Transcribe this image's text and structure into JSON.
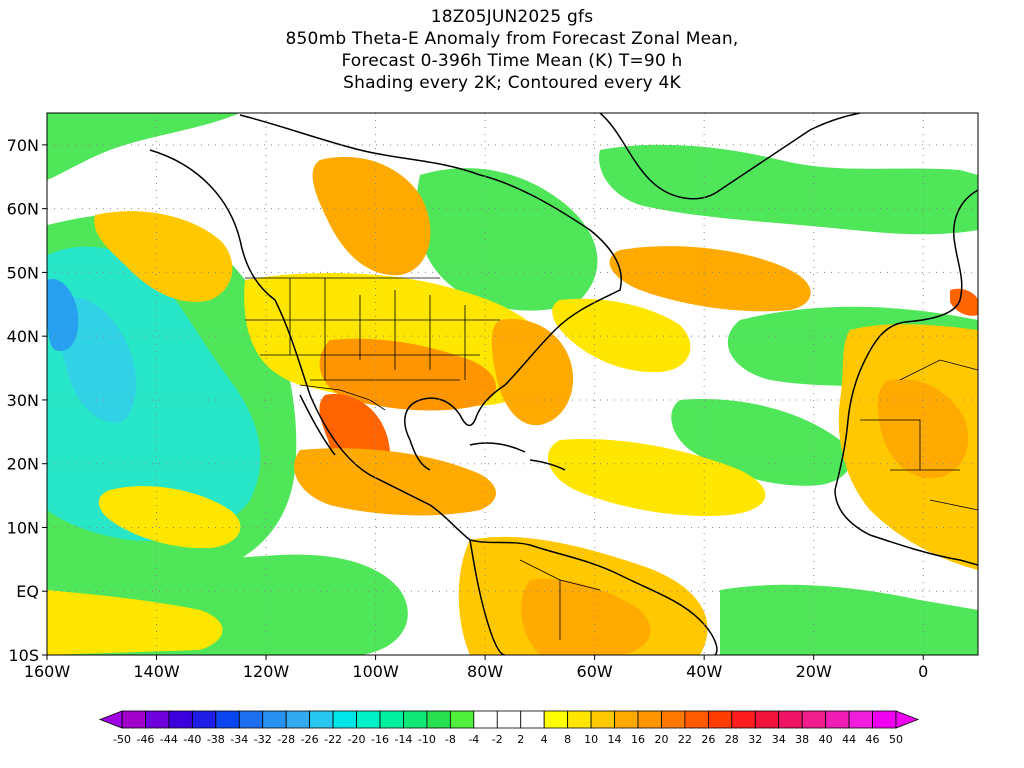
{
  "title": {
    "line1": "18Z05JUN2025 gfs",
    "line2": "850mb Theta-E Anomaly from Forecast Zonal Mean,",
    "line3": "Forecast 0-396h Time Mean (K) T=90 h",
    "line4": "Shading every 2K; Contoured every 4K"
  },
  "axes": {
    "lon_labels": [
      "160W",
      "140W",
      "120W",
      "100W",
      "80W",
      "60W",
      "40W",
      "20W",
      "0"
    ],
    "lon_values": [
      -160,
      -140,
      -120,
      -100,
      -80,
      -60,
      -40,
      -20,
      0
    ],
    "lat_labels": [
      "70N",
      "60N",
      "50N",
      "40N",
      "30N",
      "20N",
      "10N",
      "EQ",
      "10S"
    ],
    "lat_values": [
      70,
      60,
      50,
      40,
      30,
      20,
      10,
      0,
      -10
    ],
    "lon_range": [
      -160,
      10
    ],
    "lat_range": [
      -10,
      75
    ]
  },
  "colorbar": {
    "labels": [
      "-50",
      "-46",
      "-44",
      "-40",
      "-38",
      "-34",
      "-32",
      "-28",
      "-26",
      "-22",
      "-20",
      "-16",
      "-14",
      "-10",
      "-8",
      "-4",
      "-2",
      "2",
      "4",
      "8",
      "10",
      "14",
      "16",
      "20",
      "22",
      "26",
      "28",
      "32",
      "34",
      "38",
      "40",
      "44",
      "46",
      "50"
    ],
    "colors": [
      "#a000c8",
      "#6e00dc",
      "#3c00dc",
      "#1e1ee6",
      "#0a46f0",
      "#1e6ef0",
      "#2890f0",
      "#32aaf0",
      "#28c8f0",
      "#00e6e6",
      "#00f0c8",
      "#00f0a0",
      "#10e878",
      "#28e050",
      "#50f03c",
      "#ffffff",
      "#ffffff",
      "#ffffff",
      "#ffff00",
      "#ffe600",
      "#ffc800",
      "#ffaa00",
      "#ff9600",
      "#ff7800",
      "#ff5a00",
      "#ff3c00",
      "#ff1e1e",
      "#f0143c",
      "#f01464",
      "#f01e8c",
      "#f01eb4",
      "#f01edc",
      "#f000f0"
    ]
  },
  "palette": {
    "green": "#50e65a",
    "cyan": "#28e6c8",
    "yellow": "#ffe600",
    "orange": "#ffaa00",
    "red": "#ff6400",
    "blue": "#28a0f0",
    "land_outline": "#000000"
  }
}
